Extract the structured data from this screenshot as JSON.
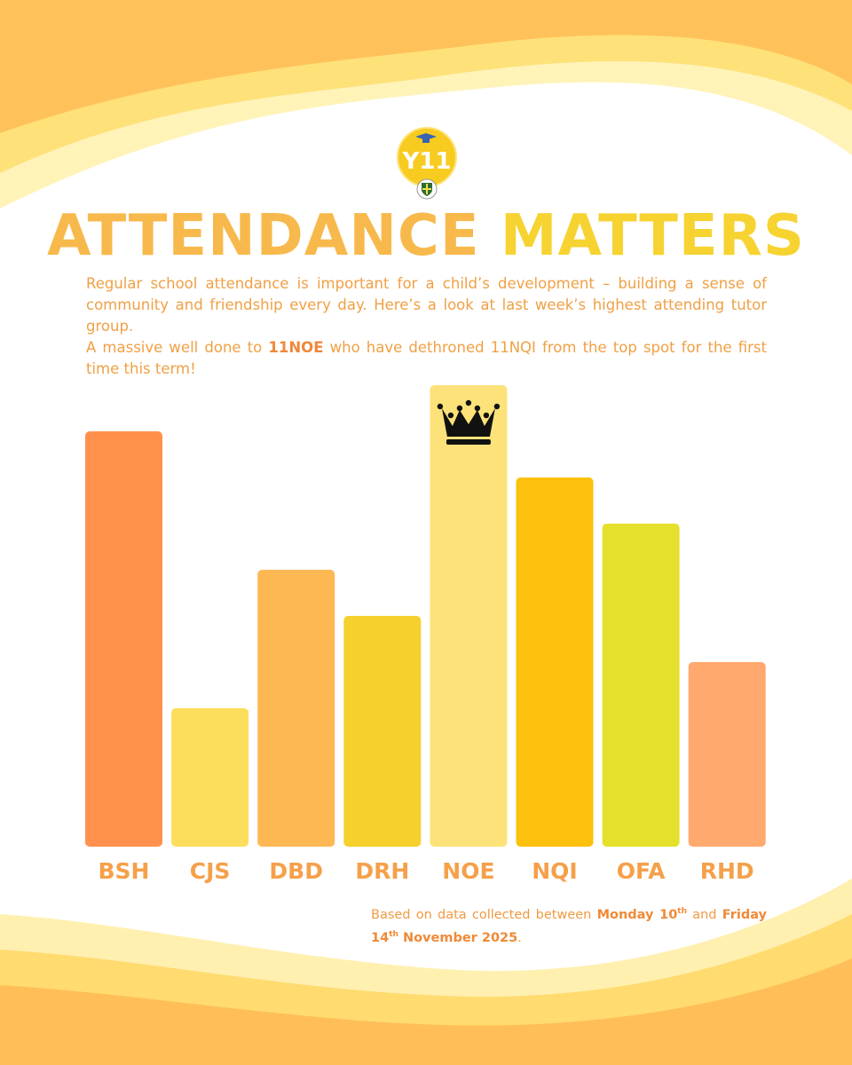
{
  "title": {
    "word1": "ATTENDANCE",
    "word2": "MATTERS"
  },
  "logo": {
    "text": "Y11"
  },
  "intro": {
    "line1": "Regular school attendance is important for a child’s development – building a sense of community and friendship every day. Here’s a look at last week’s highest attending tutor group.",
    "line2_pre": "A massive well done to ",
    "line2_bold": "11NOE",
    "line2_post": " who have dethroned 11NQI from the top spot for the first time this term!"
  },
  "footnote": {
    "pre": "Based on data collected between ",
    "day1": "Monday 10",
    "day1_sup": "th",
    "mid": " and ",
    "day2": "Friday 14",
    "day2_sup": "th",
    "day2_rest": " November 2025",
    "end": "."
  },
  "chart_data": {
    "type": "bar",
    "title": "ATTENDANCE MATTERS",
    "categories": [
      "BSH",
      "CJS",
      "DBD",
      "DRH",
      "NOE",
      "NQI",
      "OFA",
      "RHD"
    ],
    "values": [
      90,
      30,
      60,
      50,
      100,
      80,
      70,
      40
    ],
    "colors": [
      "#ff914d",
      "#fddd5c",
      "#fdb854",
      "#f6d02c",
      "#fde27a",
      "#fdc00d",
      "#e5e02c",
      "#ffa96e"
    ],
    "winner": "NOE",
    "ylim": [
      0,
      100
    ],
    "xlabel": "",
    "ylabel": "",
    "label_color": "#f5a04a",
    "grid": false
  }
}
